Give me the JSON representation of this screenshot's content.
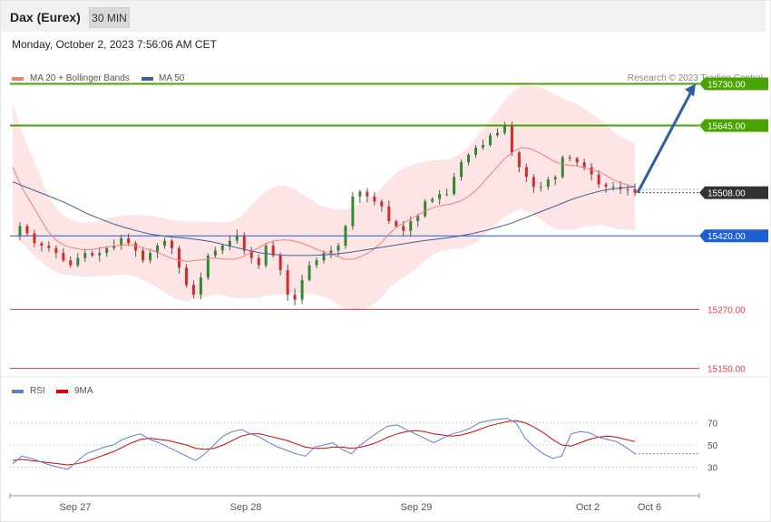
{
  "header": {
    "title": "Dax (Eurex)",
    "timeframe": "30 MIN",
    "datetime": "Monday, October 2, 2023 7:56:06 AM CET",
    "credit": "Research © 2023 Trading Central"
  },
  "legend": {
    "ma20": {
      "label": "MA 20 + Bollinger Bands",
      "color": "#f08080"
    },
    "ma50": {
      "label": "MA 50",
      "color": "#3d5fa0"
    },
    "rsi": {
      "label": "RSI",
      "color": "#5a7fd6"
    },
    "ma9": {
      "label": "9MA",
      "color": "#e00000"
    }
  },
  "chart_data": {
    "type": "candlestick",
    "x_ticks": [
      "Sep 27",
      "Sep 28",
      "Sep 29",
      "Oct 2",
      "Oct 6"
    ],
    "ylim": [
      15110,
      15790
    ],
    "levels": [
      {
        "value": 15730,
        "label": "15730.00",
        "color": "#4aa400",
        "kind": "resistance"
      },
      {
        "value": 15645,
        "label": "15645.00",
        "color": "#4aa400",
        "kind": "resistance"
      },
      {
        "value": 15508,
        "label": "15508.00",
        "color": "#333333",
        "kind": "current"
      },
      {
        "value": 15420,
        "label": "15420.00",
        "color": "#1e5fd6",
        "kind": "pivot"
      },
      {
        "value": 15270,
        "label": "15270.00",
        "color": "#e04040",
        "kind": "support"
      },
      {
        "value": 15150,
        "label": "15150.00",
        "color": "#e04040",
        "kind": "support"
      }
    ],
    "forecast_arrow": {
      "from": 15508,
      "to": 15730
    },
    "close_path": [
      15420,
      15440,
      15425,
      15405,
      15400,
      15395,
      15385,
      15370,
      15360,
      15375,
      15385,
      15380,
      15385,
      15395,
      15400,
      15415,
      15405,
      15390,
      15370,
      15385,
      15400,
      15410,
      15395,
      15355,
      15320,
      15300,
      15335,
      15380,
      15390,
      15400,
      15410,
      15420,
      15390,
      15375,
      15360,
      15400,
      15380,
      15350,
      15300,
      15290,
      15330,
      15360,
      15370,
      15385,
      15390,
      15400,
      15440,
      15500,
      15510,
      15500,
      15490,
      15480,
      15450,
      15440,
      15430,
      15450,
      15460,
      15490,
      15495,
      15505,
      15505,
      15540,
      15570,
      15585,
      15600,
      15605,
      15625,
      15630,
      15645,
      15590,
      15560,
      15540,
      15520,
      15520,
      15535,
      15540,
      15580,
      15578,
      15570,
      15560,
      15545,
      15525,
      15520,
      15520,
      15515,
      15515,
      15508
    ],
    "ma20": [
      15560,
      15520,
      15490,
      15460,
      15430,
      15410,
      15400,
      15395,
      15392,
      15392,
      15395,
      15398,
      15400,
      15402,
      15400,
      15395,
      15390,
      15383,
      15375,
      15370,
      15368,
      15370,
      15372,
      15375,
      15373,
      15372,
      15375,
      15385,
      15395,
      15405,
      15410,
      15412,
      15410,
      15405,
      15398,
      15390,
      15385,
      15378,
      15372,
      15373,
      15380,
      15390,
      15405,
      15425,
      15440,
      15450,
      15460,
      15470,
      15478,
      15482,
      15485,
      15490,
      15500,
      15515,
      15535,
      15555,
      15575,
      15590,
      15600,
      15598,
      15590,
      15580,
      15570,
      15565,
      15563,
      15560,
      15555,
      15550,
      15540,
      15530,
      15525,
      15520
    ],
    "ma50": [
      15530,
      15520,
      15510,
      15500,
      15490,
      15478,
      15465,
      15455,
      15445,
      15437,
      15430,
      15424,
      15420,
      15417,
      15415,
      15412,
      15408,
      15402,
      15396,
      15390,
      15385,
      15382,
      15380,
      15380,
      15380,
      15381,
      15383,
      15386,
      15390,
      15394,
      15398,
      15402,
      15406,
      15410,
      15413,
      15416,
      15420,
      15425,
      15431,
      15438,
      15445,
      15455,
      15465,
      15475,
      15485,
      15495,
      15503,
      15510,
      15515,
      15518,
      15520
    ],
    "rsi_ylim": [
      10,
      90
    ],
    "rsi_levels": [
      70,
      50,
      30
    ],
    "rsi": [
      33,
      40,
      38,
      35,
      32,
      30,
      28,
      35,
      42,
      45,
      48,
      50,
      55,
      58,
      60,
      55,
      52,
      48,
      44,
      40,
      36,
      42,
      50,
      58,
      62,
      64,
      60,
      57,
      52,
      48,
      45,
      42,
      40,
      48,
      50,
      52,
      46,
      42,
      50,
      56,
      62,
      67,
      68,
      64,
      60,
      56,
      52,
      56,
      60,
      62,
      65,
      70,
      72,
      73,
      74,
      70,
      56,
      48,
      42,
      38,
      40,
      60,
      62,
      61,
      57,
      55,
      53,
      48,
      42
    ],
    "rsi_ma9": [
      36,
      37,
      36,
      35,
      34,
      33,
      32,
      33,
      35,
      38,
      41,
      44,
      48,
      52,
      55,
      56,
      55,
      54,
      52,
      50,
      47,
      46,
      47,
      50,
      54,
      58,
      60,
      60,
      58,
      56,
      54,
      51,
      48,
      47,
      47,
      48,
      48,
      47,
      48,
      50,
      53,
      57,
      60,
      62,
      63,
      62,
      60,
      59,
      58,
      59,
      61,
      64,
      67,
      69,
      71,
      72,
      70,
      66,
      61,
      55,
      50,
      49,
      52,
      55,
      57,
      58,
      57,
      55,
      53
    ]
  }
}
